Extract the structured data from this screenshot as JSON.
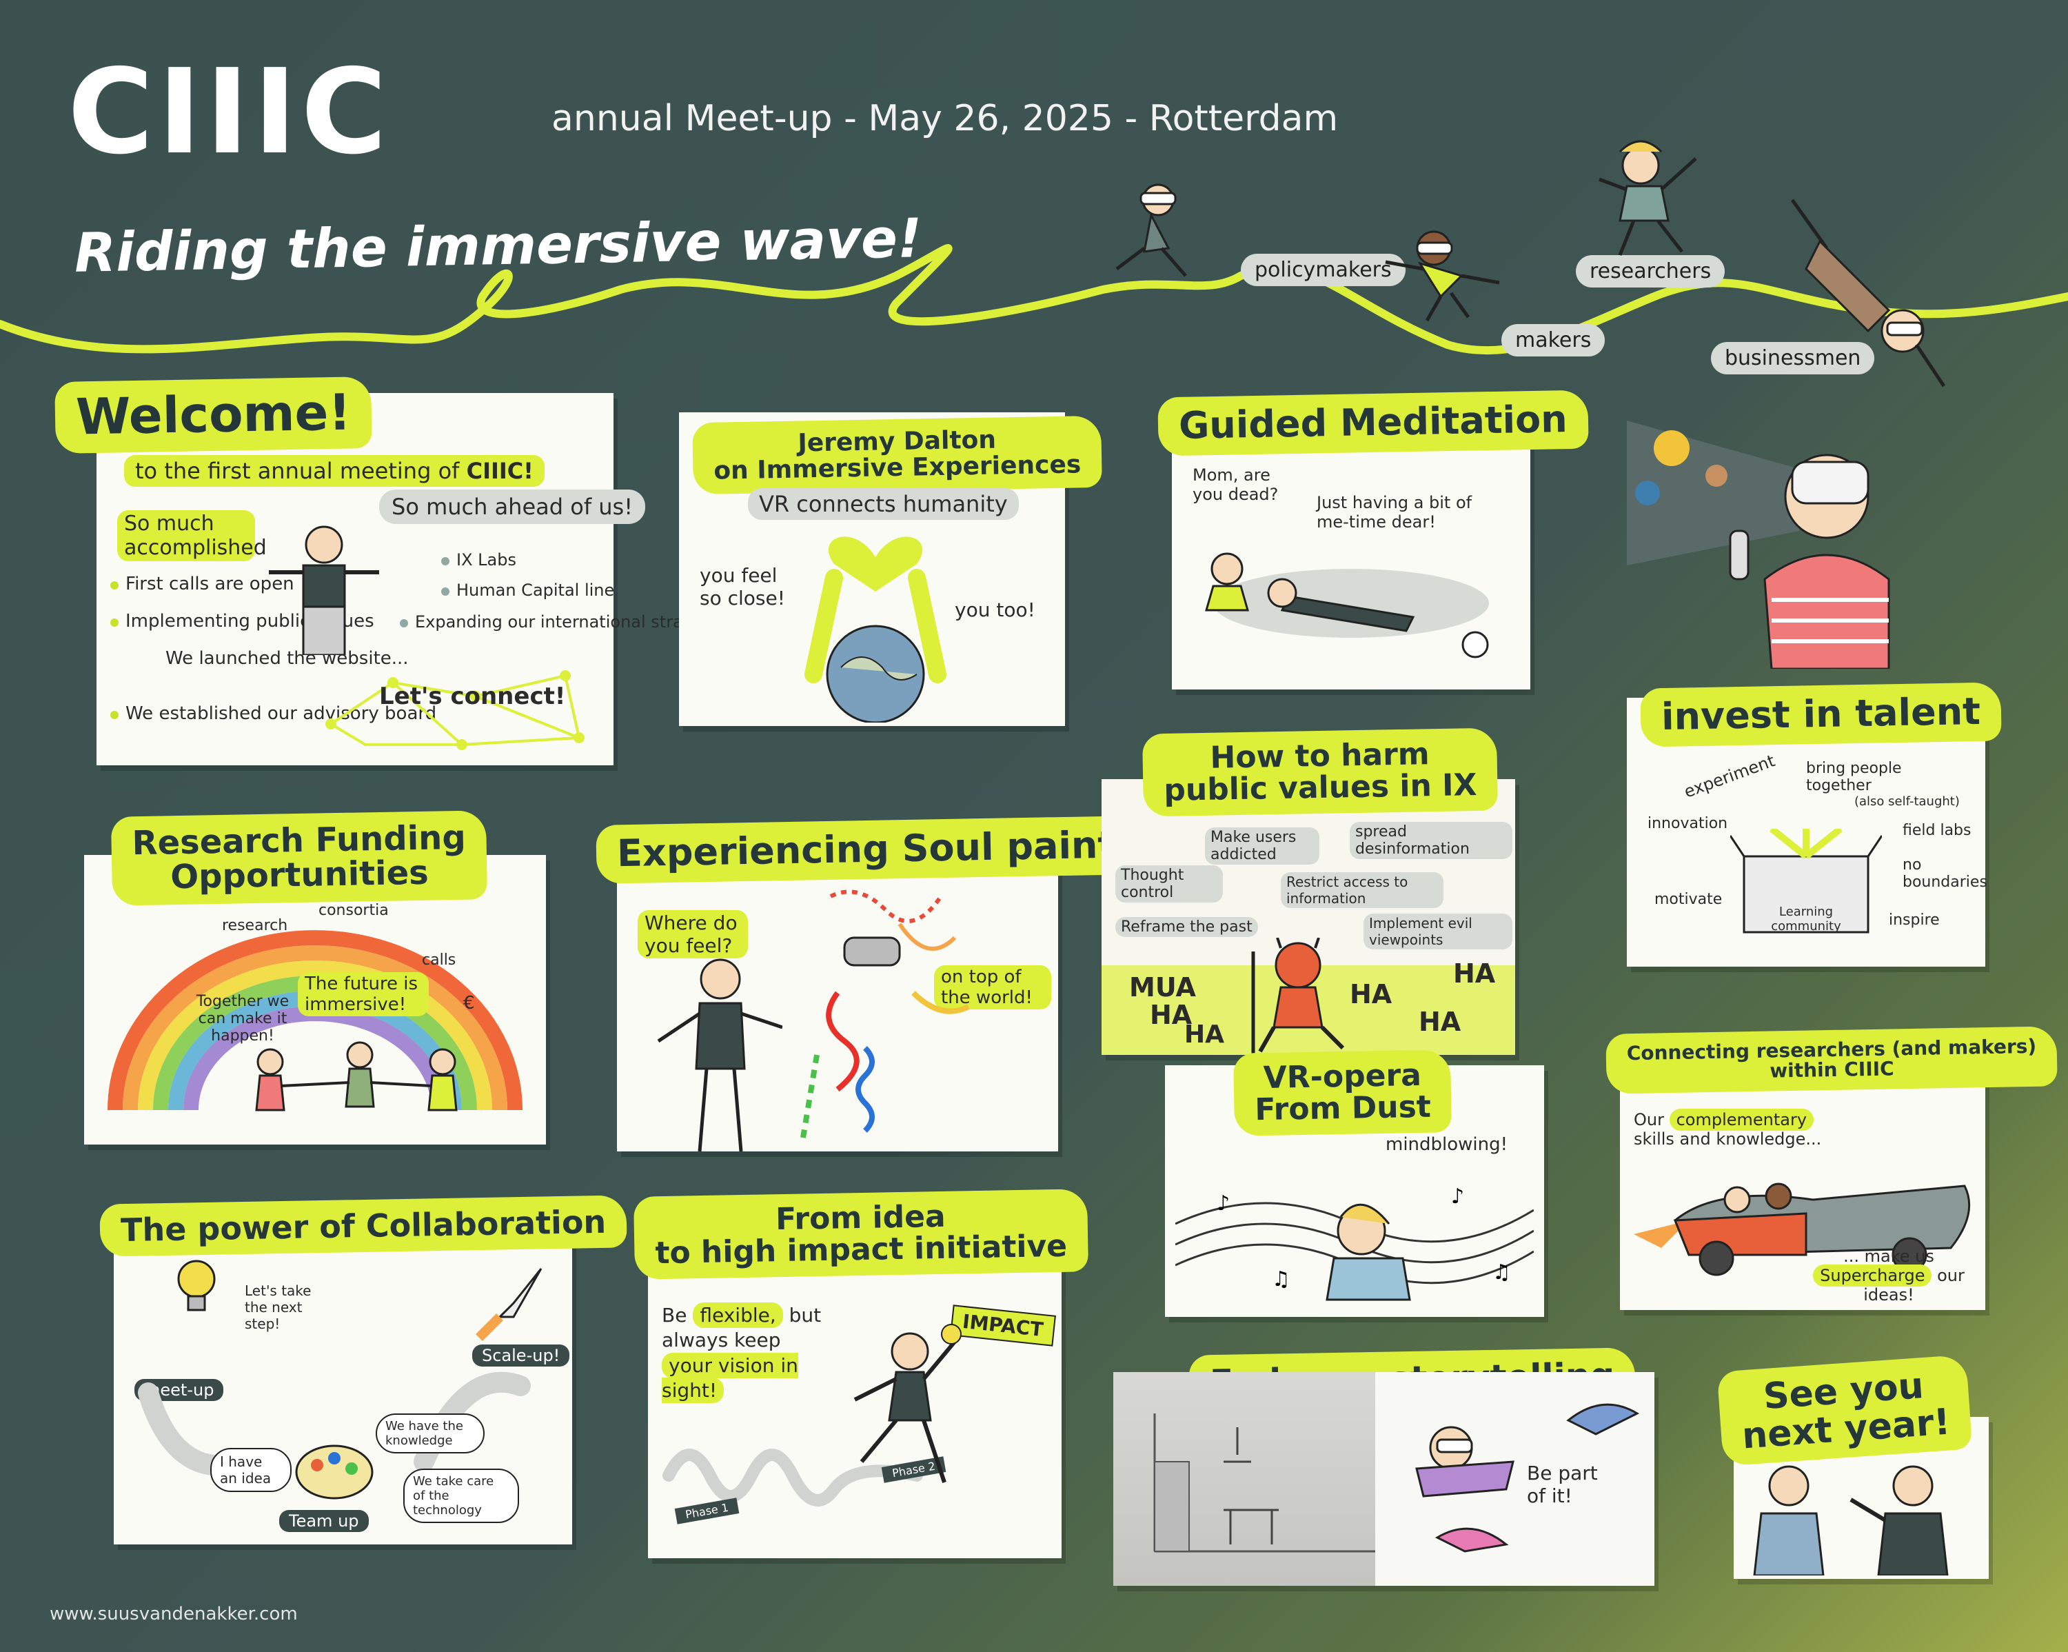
{
  "header": {
    "logo": "CIIIC",
    "subtitle": "annual Meet-up - May 26, 2025 - Rotterdam",
    "tagline": "Riding the immersive wave!"
  },
  "wave_labels": [
    "policymakers",
    "makers",
    "researchers",
    "businessmen"
  ],
  "welcome": {
    "title": "Welcome!",
    "subtitle": "to the first annual meeting of",
    "brand": "CIIIC!",
    "accomplished_label": "So much accomplished",
    "accomplished": [
      "First calls are open",
      "Implementing public Values",
      "We launched the website...",
      "We established our advisory board"
    ],
    "ahead_label": "So much ahead of us!",
    "ahead": [
      "IX Labs",
      "Human Capital line",
      "Expanding our international strategy"
    ],
    "connect": "Let's connect!"
  },
  "dalton": {
    "title_line1": "Jeremy Dalton",
    "title_line2": "on Immersive Experiences",
    "caption": "VR connects humanity",
    "left_quote": "you feel so close!",
    "right_quote": "you too!"
  },
  "meditation": {
    "title": "Guided Meditation",
    "child_quote": "Mom, are you dead?",
    "mom_quote": "Just having a bit of me-time dear!"
  },
  "invest": {
    "title": "invest in talent",
    "words": [
      "experiment",
      "bring people together",
      "(also self-taught)",
      "innovation",
      "field labs",
      "no boundaries",
      "motivate",
      "inspire"
    ],
    "box_label": "Learning community"
  },
  "research": {
    "title_line1": "Research Funding",
    "title_line2": "Opportunities",
    "rainbow_words": [
      "research",
      "consortia",
      "calls"
    ],
    "left_quote": "Together we can make it happen!",
    "center_quote": "The future is immersive!",
    "coin": "€"
  },
  "soulpaint": {
    "title": "Experiencing Soul paint",
    "question": "Where do you feel?",
    "answer": "on top of the world!"
  },
  "harm": {
    "title_line1": "How to harm",
    "title_line2": "public values in IX",
    "items": [
      "Make users addicted",
      "spread desinformation",
      "Thought control",
      "Restrict access to information",
      "Reframe the past",
      "Implement evil viewpoints"
    ],
    "laughs": [
      "MUA",
      "HA",
      "HA",
      "HA",
      "HA",
      "HA"
    ]
  },
  "connecting": {
    "title_line1": "Connecting researchers (and makers)",
    "title_line2": "within CIIIC",
    "top_text_pre": "Our",
    "top_text_hl": "complementary",
    "top_text_post": "skills and knowledge...",
    "bottom_text_pre": "... make us",
    "bottom_text_hl": "Supercharge",
    "bottom_text_post": "our ideas!"
  },
  "collab": {
    "title": "The power of Collaboration",
    "quote": "Let's take the next step!",
    "meetup": "meet-up",
    "scaleup": "Scale-up!",
    "idea": "I have an idea",
    "knowledge": "We have the knowledge",
    "technology": "We take care of the technology",
    "teamup": "Team up"
  },
  "impact": {
    "title_line1": "From idea",
    "title_line2": "to high impact initiative",
    "be": "Be",
    "flexible": "flexible,",
    "keep": "but always keep",
    "vision": "your vision in sight!",
    "sign": "IMPACT",
    "phase1": "Phase 1",
    "phase2": "Phase 2"
  },
  "opera": {
    "title_line1": "VR-opera",
    "title_line2": "From Dust",
    "quote": "mindblowing!"
  },
  "storytelling": {
    "title": "Embrace storytelling",
    "quote": "Be part of it!"
  },
  "seeyou": {
    "title_line1": "See you",
    "title_line2": "next year!"
  },
  "footer": "www.suusvandenakker.com",
  "colors": {
    "background": "#3e5552",
    "accent": "#dcf03a",
    "card": "#fbfbf5"
  }
}
